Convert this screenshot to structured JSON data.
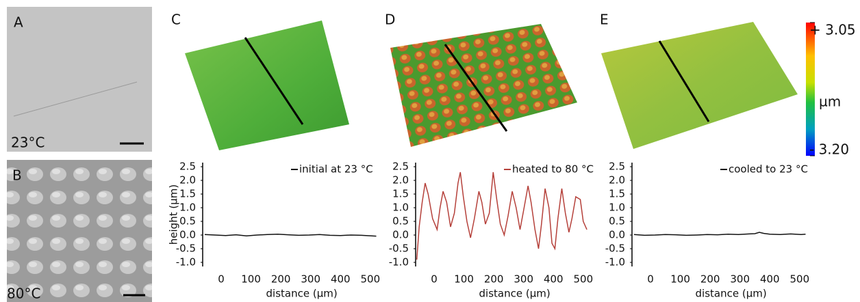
{
  "panels": {
    "labels": [
      "A",
      "B",
      "C",
      "D",
      "E"
    ],
    "temperatures": [
      "23°C",
      "80°C"
    ]
  },
  "colorbar": {
    "ticks": [
      {
        "value": 3.05,
        "label": "+ 3.05"
      },
      {
        "value": -3.2,
        "label": "- 3.20"
      }
    ],
    "unit": "µm"
  },
  "chart_data": [
    {
      "type": "line",
      "xlabel": "distance (µm)",
      "ylabel": "height (µm)",
      "legend": "upper right",
      "xlim": [
        -62,
        544
      ],
      "ylim": [
        -1.15,
        2.65
      ],
      "xticks": [
        0,
        100,
        200,
        300,
        400,
        500
      ],
      "yticks": [
        2.5,
        {
          "value": 2,
          "label": "2.0"
        },
        1.5,
        {
          "value": 1,
          "label": "1.0"
        },
        0.5,
        {
          "value": 0,
          "label": "0.0"
        },
        -0.5,
        {
          "value": -1,
          "label": "-1.0"
        }
      ],
      "x": [
        -55,
        -20,
        15,
        50,
        85,
        120,
        155,
        190,
        225,
        260,
        295,
        330,
        365,
        400,
        435,
        470,
        505,
        520
      ],
      "series": [
        {
          "name": "initial at 23 °C",
          "color": "#111111",
          "values": [
            0.02,
            0.0,
            -0.02,
            0.01,
            -0.03,
            0.0,
            0.02,
            0.03,
            0.01,
            -0.01,
            0.0,
            0.02,
            -0.01,
            -0.02,
            0.0,
            -0.01,
            -0.03,
            -0.04
          ]
        }
      ]
    },
    {
      "type": "line",
      "xlabel": "distance (µm)",
      "legend": "upper right",
      "xlim": [
        -62,
        544
      ],
      "ylim": [
        -1.15,
        2.65
      ],
      "xticks": [
        0,
        100,
        200,
        300,
        400,
        500
      ],
      "yticks": [
        2.5,
        {
          "value": 2,
          "label": "2.0"
        },
        1.5,
        {
          "value": 1,
          "label": "1.0"
        },
        0.5,
        {
          "value": 0,
          "label": "0.0"
        },
        -0.5,
        {
          "value": -1,
          "label": "-1.0"
        }
      ],
      "x": [
        -58,
        -50,
        -40,
        -30,
        -20,
        -5,
        10,
        20,
        30,
        42,
        55,
        68,
        80,
        88,
        98,
        110,
        122,
        135,
        150,
        160,
        172,
        185,
        198,
        210,
        222,
        235,
        248,
        262,
        275,
        288,
        300,
        315,
        325,
        338,
        350,
        360,
        372,
        385,
        395,
        405,
        415,
        428,
        440,
        452,
        462,
        475,
        490,
        500,
        512
      ],
      "series": [
        {
          "name": "heated to 80 °C",
          "color": "#b5403a",
          "values": [
            -0.9,
            0.3,
            1.2,
            1.9,
            1.5,
            0.6,
            0.2,
            1.0,
            1.6,
            1.2,
            0.3,
            0.8,
            1.9,
            2.3,
            1.4,
            0.5,
            -0.1,
            0.6,
            1.6,
            1.2,
            0.4,
            0.8,
            2.3,
            1.3,
            0.4,
            0.0,
            0.7,
            1.6,
            1.0,
            0.2,
            0.9,
            1.8,
            1.2,
            0.2,
            -0.5,
            0.4,
            1.7,
            1.0,
            -0.3,
            -0.5,
            0.6,
            1.7,
            0.8,
            0.1,
            0.6,
            1.4,
            1.3,
            0.5,
            0.2
          ]
        }
      ]
    },
    {
      "type": "line",
      "xlabel": "distance (µm)",
      "legend": "upper right",
      "xlim": [
        -62,
        544
      ],
      "ylim": [
        -1.15,
        2.65
      ],
      "xticks": [
        0,
        100,
        200,
        300,
        400,
        500
      ],
      "yticks": [
        2.5,
        {
          "value": 2,
          "label": "2.0"
        },
        1.5,
        {
          "value": 1,
          "label": "1.0"
        },
        0.5,
        {
          "value": 0,
          "label": "0.0"
        },
        -0.5,
        {
          "value": -1,
          "label": "-1.0"
        }
      ],
      "x": [
        -55,
        -20,
        15,
        50,
        85,
        120,
        155,
        190,
        225,
        260,
        295,
        330,
        350,
        365,
        380,
        400,
        435,
        470,
        505,
        520
      ],
      "series": [
        {
          "name": "cooled to 23 °C",
          "color": "#111111",
          "values": [
            0.02,
            -0.01,
            0.0,
            0.02,
            0.01,
            -0.01,
            0.0,
            0.02,
            0.01,
            0.03,
            0.02,
            0.04,
            0.05,
            0.1,
            0.06,
            0.03,
            0.02,
            0.04,
            0.02,
            0.03
          ]
        }
      ]
    }
  ]
}
